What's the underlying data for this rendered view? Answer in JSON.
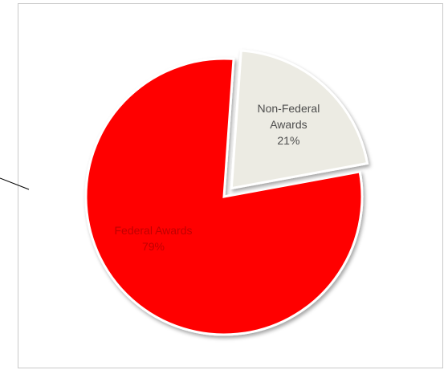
{
  "chart_data": {
    "type": "pie",
    "title": "",
    "slices": [
      {
        "label_lines": [
          "Federal Awards",
          "79%"
        ],
        "name": "Federal Awards",
        "value": 79,
        "color": "#ff0000",
        "label_color": "#c00000"
      },
      {
        "label_lines": [
          "Non-Federal",
          "Awards",
          "21%"
        ],
        "name": "Non-Federal Awards",
        "value": 21,
        "color": "#ecebe3",
        "label_color": "#4d4d4d",
        "exploded": true
      }
    ],
    "legend": "none"
  },
  "colors": {
    "frame_border": "#c9c9c9",
    "background": "#ffffff",
    "slice_stroke": "#ffffff"
  }
}
